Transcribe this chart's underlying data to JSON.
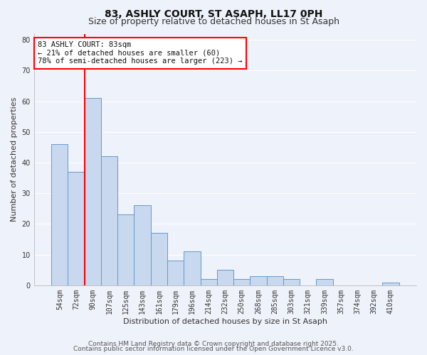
{
  "title": "83, ASHLY COURT, ST ASAPH, LL17 0PH",
  "subtitle": "Size of property relative to detached houses in St Asaph",
  "xlabel": "Distribution of detached houses by size in St Asaph",
  "ylabel": "Number of detached properties",
  "bar_labels": [
    "54sqm",
    "72sqm",
    "90sqm",
    "107sqm",
    "125sqm",
    "143sqm",
    "161sqm",
    "179sqm",
    "196sqm",
    "214sqm",
    "232sqm",
    "250sqm",
    "268sqm",
    "285sqm",
    "303sqm",
    "321sqm",
    "339sqm",
    "357sqm",
    "374sqm",
    "392sqm",
    "410sqm"
  ],
  "bar_values": [
    46,
    37,
    61,
    42,
    23,
    26,
    17,
    8,
    11,
    2,
    5,
    2,
    3,
    3,
    2,
    0,
    2,
    0,
    0,
    0,
    1
  ],
  "bar_color": "#c8d8ee",
  "bar_edge_color": "#6699cc",
  "vline_color": "red",
  "vline_pos": 1.5,
  "ylim": [
    0,
    82
  ],
  "yticks": [
    0,
    10,
    20,
    30,
    40,
    50,
    60,
    70,
    80
  ],
  "annotation_text": "83 ASHLY COURT: 83sqm\n← 21% of detached houses are smaller (60)\n78% of semi-detached houses are larger (223) →",
  "annotation_box_color": "white",
  "annotation_box_edge": "red",
  "footer1": "Contains HM Land Registry data © Crown copyright and database right 2025.",
  "footer2": "Contains public sector information licensed under the Open Government Licence v3.0.",
  "bg_color": "#eef2fa",
  "grid_color": "#ffffff",
  "title_fontsize": 10,
  "subtitle_fontsize": 9,
  "axis_label_fontsize": 8,
  "tick_fontsize": 7,
  "annotation_fontsize": 7.5,
  "footer_fontsize": 6.5
}
